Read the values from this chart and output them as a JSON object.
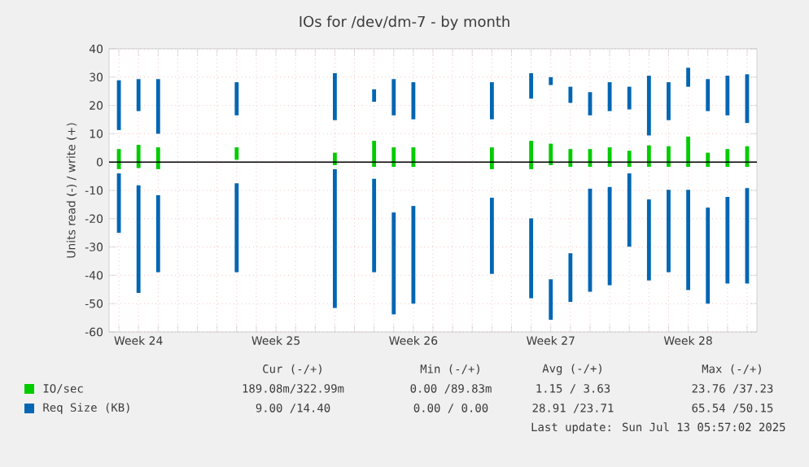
{
  "chart_data": {
    "type": "bar",
    "title": "IOs for /dev/dm-7 - by month",
    "ylabel": "Units read (-) / write (+)",
    "categories": [
      null,
      "Week 24",
      null,
      null,
      null,
      null,
      null,
      null,
      "Week 25",
      null,
      null,
      null,
      null,
      null,
      null,
      "Week 26",
      null,
      null,
      null,
      null,
      null,
      null,
      "Week 27",
      null,
      null,
      null,
      null,
      null,
      null,
      "Week 28",
      null,
      null,
      null
    ],
    "series": [
      {
        "name": "IO/sec",
        "color": "#00cc00",
        "base": [
          -2.5,
          -2.1,
          -2.5,
          null,
          null,
          null,
          0.8,
          null,
          null,
          null,
          null,
          -1.1,
          null,
          -1.7,
          -1.7,
          -1.7,
          null,
          null,
          null,
          -2.5,
          null,
          -2.5,
          -1.1,
          -1.7,
          -1.7,
          -1.7,
          -1.7,
          -1.7,
          -1.7,
          -1.7,
          -1.7,
          -1.7,
          -1.7
        ],
        "values": [
          7.1,
          8.2,
          7.7,
          null,
          null,
          null,
          4.4,
          null,
          null,
          null,
          null,
          4.4,
          null,
          9.2,
          6.9,
          6.9,
          null,
          null,
          null,
          7.7,
          null,
          10,
          7.6,
          6.3,
          6.3,
          6.9,
          5.7,
          7.6,
          7.3,
          10.7,
          5,
          6.3,
          7.3
        ]
      },
      {
        "name": "Req Size (KB)",
        "color": "#0066b3",
        "base": [
          11.3,
          18,
          10,
          null,
          null,
          null,
          16.5,
          null,
          null,
          null,
          null,
          14.8,
          null,
          21.3,
          16.5,
          15.1,
          null,
          null,
          null,
          15.1,
          null,
          22.4,
          27.2,
          20.9,
          16.5,
          18,
          18.6,
          9.4,
          14.8,
          26.6,
          18,
          16.5,
          13.8
        ],
        "values": [
          17.6,
          11.3,
          19.3,
          null,
          null,
          null,
          11.7,
          null,
          null,
          null,
          null,
          16.6,
          null,
          4.4,
          12.8,
          13.1,
          null,
          null,
          null,
          13.1,
          null,
          9,
          2.8,
          5.7,
          8.2,
          10.2,
          8,
          21.1,
          13.4,
          6.7,
          11.3,
          14,
          17.2
        ]
      },
      {
        "color": "#0066b3",
        "base": [
          -25,
          -46.2,
          -38.9,
          null,
          null,
          null,
          -38.9,
          null,
          null,
          null,
          null,
          -51.5,
          null,
          -38.9,
          -53.8,
          -50,
          null,
          null,
          null,
          -39.5,
          null,
          -48.1,
          -55.7,
          -49.4,
          -45.8,
          -43.5,
          -29.9,
          -41.8,
          -38.9,
          -45.2,
          -50,
          -42.9,
          -42.9
        ],
        "values": [
          21,
          38,
          27.2,
          null,
          null,
          null,
          31.4,
          null,
          null,
          null,
          null,
          49,
          null,
          33,
          36,
          34.5,
          null,
          null,
          null,
          26.9,
          null,
          28.2,
          14.3,
          17.2,
          36.4,
          34.7,
          25.9,
          28.6,
          29.1,
          35.4,
          33.9,
          30.6,
          33.7
        ]
      }
    ],
    "ylim": [
      -60,
      40
    ],
    "yticks": [
      -60,
      -50,
      -40,
      -30,
      -20,
      -10,
      0,
      10,
      20,
      30,
      40
    ],
    "ref_lines": [
      {
        "axis": "y",
        "value": 0,
        "color": "#000000"
      }
    ],
    "grid": true,
    "legend": "bottom",
    "annotations": [
      "Cur (-/+)",
      "Min (-/+)",
      "Avg (-/+)",
      "Max (-/+)",
      "189.08m/322.99m",
      "0.00 /89.83m",
      "1.15 / 3.63",
      "23.76 /37.23",
      "9.00 /14.40",
      "0.00 / 0.00",
      "28.91 /23.71",
      "65.54 /50.15",
      "Last update: Sun Jul 13 05:57:02 2025"
    ]
  }
}
